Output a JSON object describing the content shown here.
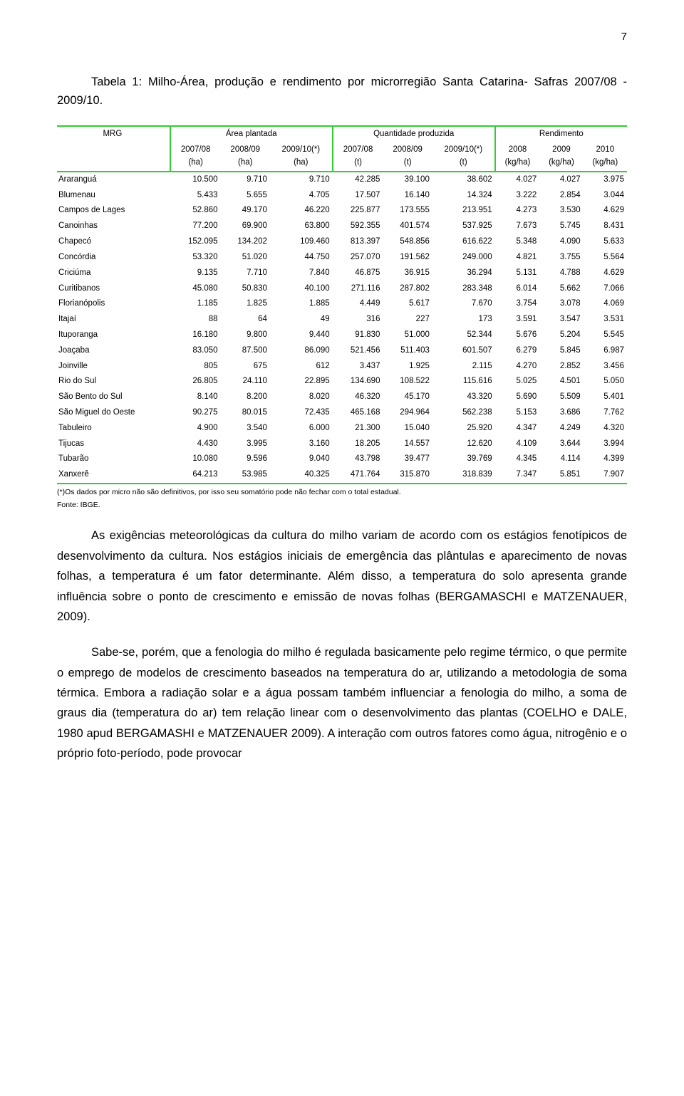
{
  "page_number": "7",
  "caption": "Tabela 1: Milho-Área, produção e rendimento por microrregião Santa Catarina- Safras 2007/08 - 2009/10.",
  "table": {
    "mrg_label": "MRG",
    "group_headers": [
      "Área plantada",
      "Quantidade produzida",
      "Rendimento"
    ],
    "sub_headers": [
      "2007/08 (ha)",
      "2008/09 (ha)",
      "2009/10(*) (ha)",
      "2007/08 (t)",
      "2008/09 (t)",
      "2009/10(*) (t)",
      "2008 (kg/ha)",
      "2009 (kg/ha)",
      "2010 (kg/ha)"
    ],
    "rows": [
      [
        "Araranguá",
        "10.500",
        "9.710",
        "9.710",
        "42.285",
        "39.100",
        "38.602",
        "4.027",
        "4.027",
        "3.975"
      ],
      [
        "Blumenau",
        "5.433",
        "5.655",
        "4.705",
        "17.507",
        "16.140",
        "14.324",
        "3.222",
        "2.854",
        "3.044"
      ],
      [
        "Campos de Lages",
        "52.860",
        "49.170",
        "46.220",
        "225.877",
        "173.555",
        "213.951",
        "4.273",
        "3.530",
        "4.629"
      ],
      [
        "Canoinhas",
        "77.200",
        "69.900",
        "63.800",
        "592.355",
        "401.574",
        "537.925",
        "7.673",
        "5.745",
        "8.431"
      ],
      [
        "Chapecó",
        "152.095",
        "134.202",
        "109.460",
        "813.397",
        "548.856",
        "616.622",
        "5.348",
        "4.090",
        "5.633"
      ],
      [
        "Concórdia",
        "53.320",
        "51.020",
        "44.750",
        "257.070",
        "191.562",
        "249.000",
        "4.821",
        "3.755",
        "5.564"
      ],
      [
        "Criciúma",
        "9.135",
        "7.710",
        "7.840",
        "46.875",
        "36.915",
        "36.294",
        "5.131",
        "4.788",
        "4.629"
      ],
      [
        "Curitibanos",
        "45.080",
        "50.830",
        "40.100",
        "271.116",
        "287.802",
        "283.348",
        "6.014",
        "5.662",
        "7.066"
      ],
      [
        "Florianópolis",
        "1.185",
        "1.825",
        "1.885",
        "4.449",
        "5.617",
        "7.670",
        "3.754",
        "3.078",
        "4.069"
      ],
      [
        "Itajaí",
        "88",
        "64",
        "49",
        "316",
        "227",
        "173",
        "3.591",
        "3.547",
        "3.531"
      ],
      [
        "Ituporanga",
        "16.180",
        "9.800",
        "9.440",
        "91.830",
        "51.000",
        "52.344",
        "5.676",
        "5.204",
        "5.545"
      ],
      [
        "Joaçaba",
        "83.050",
        "87.500",
        "86.090",
        "521.456",
        "511.403",
        "601.507",
        "6.279",
        "5.845",
        "6.987"
      ],
      [
        "Joinville",
        "805",
        "675",
        "612",
        "3.437",
        "1.925",
        "2.115",
        "4.270",
        "2.852",
        "3.456"
      ],
      [
        "Rio do Sul",
        "26.805",
        "24.110",
        "22.895",
        "134.690",
        "108.522",
        "115.616",
        "5.025",
        "4.501",
        "5.050"
      ],
      [
        "São Bento do Sul",
        "8.140",
        "8.200",
        "8.020",
        "46.320",
        "45.170",
        "43.320",
        "5.690",
        "5.509",
        "5.401"
      ],
      [
        "São Miguel do Oeste",
        "90.275",
        "80.015",
        "72.435",
        "465.168",
        "294.964",
        "562.238",
        "5.153",
        "3.686",
        "7.762"
      ],
      [
        "Tabuleiro",
        "4.900",
        "3.540",
        "6.000",
        "21.300",
        "15.040",
        "25.920",
        "4.347",
        "4.249",
        "4.320"
      ],
      [
        "Tijucas",
        "4.430",
        "3.995",
        "3.160",
        "18.205",
        "14.557",
        "12.620",
        "4.109",
        "3.644",
        "3.994"
      ],
      [
        "Tubarão",
        "10.080",
        "9.596",
        "9.040",
        "43.798",
        "39.477",
        "39.769",
        "4.345",
        "4.114",
        "4.399"
      ],
      [
        "Xanxerê",
        "64.213",
        "53.985",
        "40.325",
        "471.764",
        "315.870",
        "318.839",
        "7.347",
        "5.851",
        "7.907"
      ]
    ],
    "footnote1": "(*)Os dados por micro não são definitivos, por isso seu somatório pode não fechar com o total estadual.",
    "footnote2": "Fonte: IBGE.",
    "border_color": "#33cc33",
    "text_color": "#000000",
    "background_color": "#ffffff"
  },
  "paragraphs": [
    "As exigências meteorológicas da cultura do milho variam de acordo com os estágios fenotípicos de desenvolvimento da cultura. Nos estágios iniciais de emergência das plântulas e aparecimento de novas folhas, a temperatura é um fator determinante. Além disso, a temperatura do solo apresenta grande influência sobre o ponto de crescimento e emissão de novas folhas (BERGAMASCHI e MATZENAUER, 2009).",
    "Sabe-se, porém, que a fenologia do milho é regulada basicamente pelo regime térmico, o que permite o emprego de modelos de crescimento baseados na temperatura do ar, utilizando a metodologia de soma térmica. Embora a radiação solar e a água possam também influenciar a fenologia do milho, a soma de graus dia (temperatura do ar) tem relação linear com o desenvolvimento das plantas (COELHO e DALE, 1980 apud BERGAMASHI e MATZENAUER 2009). A interação com outros fatores como água, nitrogênio e o próprio foto-período, pode provocar"
  ]
}
